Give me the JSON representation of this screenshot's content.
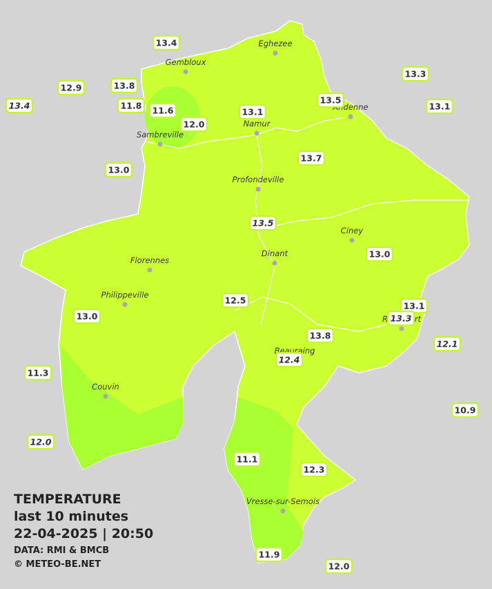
{
  "caption": {
    "title": "TEMPERATURE",
    "period": "last 10 minutes",
    "timestamp": "22-04-2025  |  20:50",
    "source": "DATA: RMI & BMCB",
    "credit": "© METEO-BE.NET"
  },
  "towns": [
    "Eghezee",
    "Gembloux",
    "Andenne",
    "Namur",
    "Sambreville",
    "Profondeville",
    "Ciney",
    "Florennes",
    "Dinant",
    "Philippeville",
    "Rochefort",
    "Beauraing",
    "Couvin",
    "Vresse-sur-Semois"
  ],
  "stations": [
    "13.4",
    "12.9",
    "13.8",
    "13.4",
    "11.8",
    "11.6",
    "12.0",
    "13.1",
    "13.5",
    "13.3",
    "13.1",
    "13.0",
    "13.7",
    "13.5",
    "13.0",
    "12.5",
    "13.0",
    "13.1",
    "13.3",
    "13.8",
    "12.4",
    "12.1",
    "11.3",
    "10.9",
    "12.0",
    "11.1",
    "12.3",
    "11.9",
    "12.0"
  ]
}
